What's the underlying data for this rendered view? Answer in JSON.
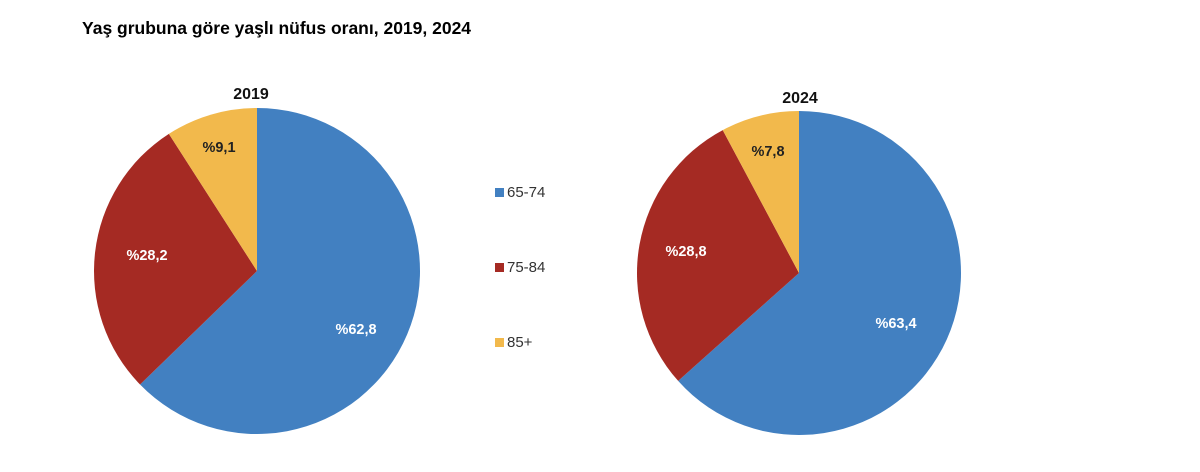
{
  "chart_data": {
    "type": "pie",
    "title": "Yaş grubuna göre yaşlı nüfus oranı, 2019, 2024",
    "categories": [
      "65-74",
      "75-84",
      "85+"
    ],
    "colors": {
      "65-74": "#4280c1",
      "75-84": "#a52a23",
      "85+": "#f2b94c"
    },
    "legend_position": "center",
    "pies": [
      {
        "title": "2019",
        "values": [
          62.8,
          28.2,
          9.1
        ],
        "labels": [
          "%62,8",
          "%28,2",
          "%9,1"
        ]
      },
      {
        "title": "2024",
        "values": [
          63.4,
          28.8,
          7.8
        ],
        "labels": [
          "%63,4",
          "%28,8",
          "%7,8"
        ]
      }
    ]
  }
}
